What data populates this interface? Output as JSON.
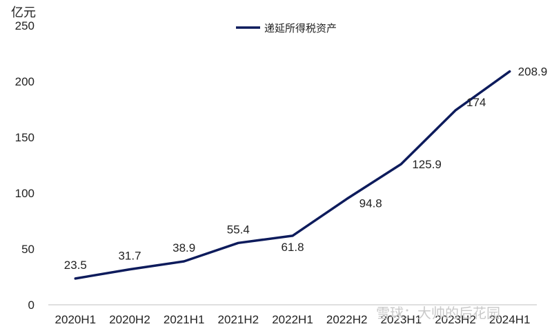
{
  "chart_data": {
    "type": "line",
    "unit_label": "亿元",
    "categories": [
      "2020H1",
      "2020H2",
      "2021H1",
      "2021H2",
      "2022H1",
      "2022H2",
      "2023H1",
      "2023H2",
      "2024H1"
    ],
    "series": [
      {
        "name": "递延所得税资产",
        "values": [
          23.5,
          31.7,
          38.9,
          55.4,
          61.8,
          94.8,
          125.9,
          174,
          208.9
        ],
        "color": "#0d1b5c"
      }
    ],
    "data_labels": [
      "23.5",
      "31.7",
      "38.9",
      "55.4",
      "61.8",
      "94.8",
      "125.9",
      "174",
      "208.9"
    ],
    "ylim": [
      0,
      250
    ],
    "yticks": [
      0,
      50,
      100,
      150,
      200,
      250
    ],
    "grid": false,
    "legend_position": "top-center"
  },
  "watermark": "雪球：大帅的后花园"
}
